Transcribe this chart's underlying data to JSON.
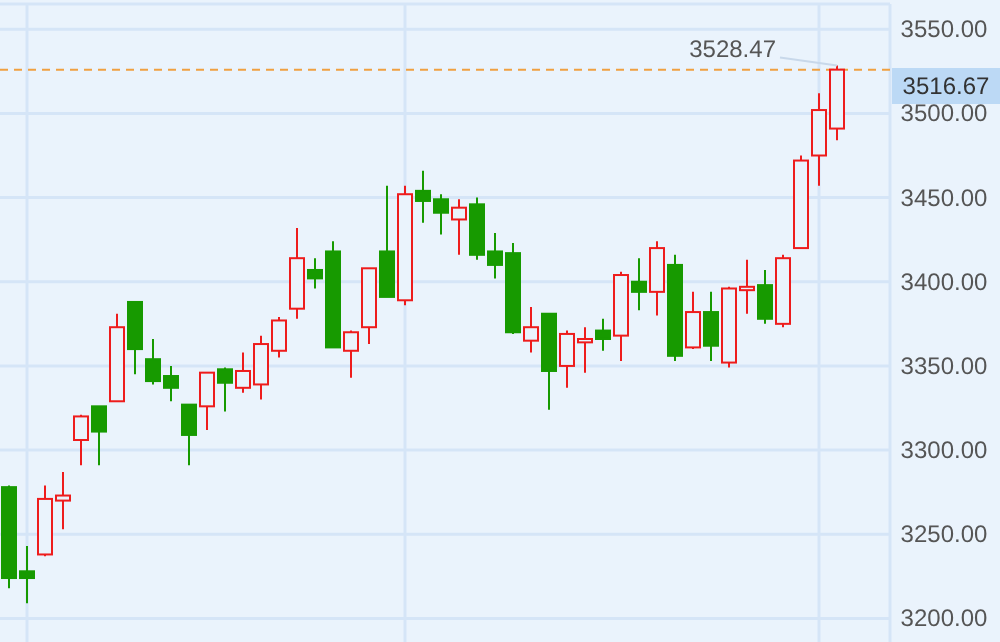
{
  "chart_data": {
    "type": "candlestick",
    "categories": [
      null,
      null,
      null,
      null,
      null,
      null,
      null,
      null,
      null,
      null,
      null,
      null,
      null,
      null,
      null,
      null,
      null,
      null,
      null,
      null,
      null,
      null,
      null,
      null,
      null,
      null,
      null,
      null,
      null,
      null,
      null,
      null,
      null,
      null,
      null,
      null,
      null,
      null,
      null,
      null,
      null,
      null,
      null,
      null,
      null,
      null,
      null
    ],
    "ohlc": [
      [
        3278,
        3279,
        3218,
        3224
      ],
      [
        3228,
        3243,
        3209,
        3224
      ],
      [
        3238,
        3279,
        3237,
        3271
      ],
      [
        3270,
        3287,
        3253,
        3273
      ],
      [
        3306,
        3321,
        3291,
        3320
      ],
      [
        3326,
        3326,
        3291,
        3311
      ],
      [
        3329,
        3381,
        3329,
        3373
      ],
      [
        3388,
        3388,
        3345,
        3360
      ],
      [
        3354,
        3366,
        3339,
        3341
      ],
      [
        3344,
        3350,
        3329,
        3337
      ],
      [
        3327,
        3327,
        3291,
        3309
      ],
      [
        3326,
        3346,
        3312,
        3346
      ],
      [
        3348,
        3349,
        3323,
        3340
      ],
      [
        3337,
        3358,
        3334,
        3347
      ],
      [
        3339,
        3368,
        3330,
        3363
      ],
      [
        3359,
        3379,
        3355,
        3377
      ],
      [
        3384,
        3432,
        3378,
        3414
      ],
      [
        3407,
        3414,
        3396,
        3402
      ],
      [
        3418,
        3424,
        3361,
        3361
      ],
      [
        3359,
        3371,
        3343,
        3370
      ],
      [
        3373,
        3408,
        3363,
        3408
      ],
      [
        3418,
        3457,
        3391,
        3391
      ],
      [
        3389,
        3457,
        3386,
        3452
      ],
      [
        3454,
        3466,
        3435,
        3448
      ],
      [
        3449,
        3452,
        3428,
        3441
      ],
      [
        3437,
        3449,
        3416,
        3444
      ],
      [
        3446,
        3450,
        3413,
        3416
      ],
      [
        3418,
        3429,
        3402,
        3410
      ],
      [
        3417,
        3423,
        3369,
        3370
      ],
      [
        3365,
        3385,
        3358,
        3373
      ],
      [
        3381,
        3381,
        3324,
        3347
      ],
      [
        3350,
        3371,
        3337,
        3369
      ],
      [
        3364,
        3373,
        3346,
        3366
      ],
      [
        3371,
        3378,
        3359,
        3366
      ],
      [
        3368,
        3406,
        3353,
        3404
      ],
      [
        3400,
        3414,
        3383,
        3394
      ],
      [
        3394,
        3424,
        3380,
        3420
      ],
      [
        3410,
        3416,
        3353,
        3356
      ],
      [
        3361,
        3394,
        3360,
        3382
      ],
      [
        3382,
        3394,
        3353,
        3362
      ],
      [
        3352,
        3397,
        3349,
        3396
      ],
      [
        3395,
        3413,
        3381,
        3397
      ],
      [
        3398,
        3407,
        3375,
        3378
      ],
      [
        3375,
        3416,
        3373,
        3414
      ],
      [
        3420,
        3475,
        3420,
        3472
      ],
      [
        3475,
        3512,
        3457,
        3502
      ],
      [
        3491,
        3528.47,
        3484,
        3526
      ]
    ],
    "colors": [
      "#179a00",
      "#179a00",
      "#ee1c1c",
      "#ee1c1c",
      "#ee1c1c",
      "#179a00",
      "#ee1c1c",
      "#179a00",
      "#179a00",
      "#179a00",
      "#179a00",
      "#ee1c1c",
      "#179a00",
      "#ee1c1c",
      "#ee1c1c",
      "#ee1c1c",
      "#ee1c1c",
      "#179a00",
      "#179a00",
      "#ee1c1c",
      "#ee1c1c",
      "#179a00",
      "#ee1c1c",
      "#179a00",
      "#179a00",
      "#ee1c1c",
      "#179a00",
      "#179a00",
      "#179a00",
      "#ee1c1c",
      "#179a00",
      "#ee1c1c",
      "#ee1c1c",
      "#179a00",
      "#ee1c1c",
      "#179a00",
      "#ee1c1c",
      "#179a00",
      "#ee1c1c",
      "#179a00",
      "#ee1c1c",
      "#ee1c1c",
      "#179a00",
      "#ee1c1c",
      "#ee1c1c",
      "#ee1c1c",
      "#ee1c1c"
    ],
    "ylim": [
      3186,
      3565
    ],
    "yticks": [
      {
        "value": 3200,
        "label": "3200.00"
      },
      {
        "value": 3250,
        "label": "3250.00"
      },
      {
        "value": 3300,
        "label": "3300.00"
      },
      {
        "value": 3350,
        "label": "3350.00"
      },
      {
        "value": 3400,
        "label": "3400.00"
      },
      {
        "value": 3450,
        "label": "3450.00"
      },
      {
        "value": 3500,
        "label": "3500.00"
      },
      {
        "value": 3550,
        "label": "3550.00"
      }
    ],
    "grid": true,
    "ref_lines": [
      {
        "axis": "y",
        "value": 3526,
        "color": "#f0a040",
        "line_style": "dashed"
      }
    ],
    "annotations": [
      {
        "text": "3528.47",
        "y": 3528.47
      },
      "3516.67"
    ]
  }
}
